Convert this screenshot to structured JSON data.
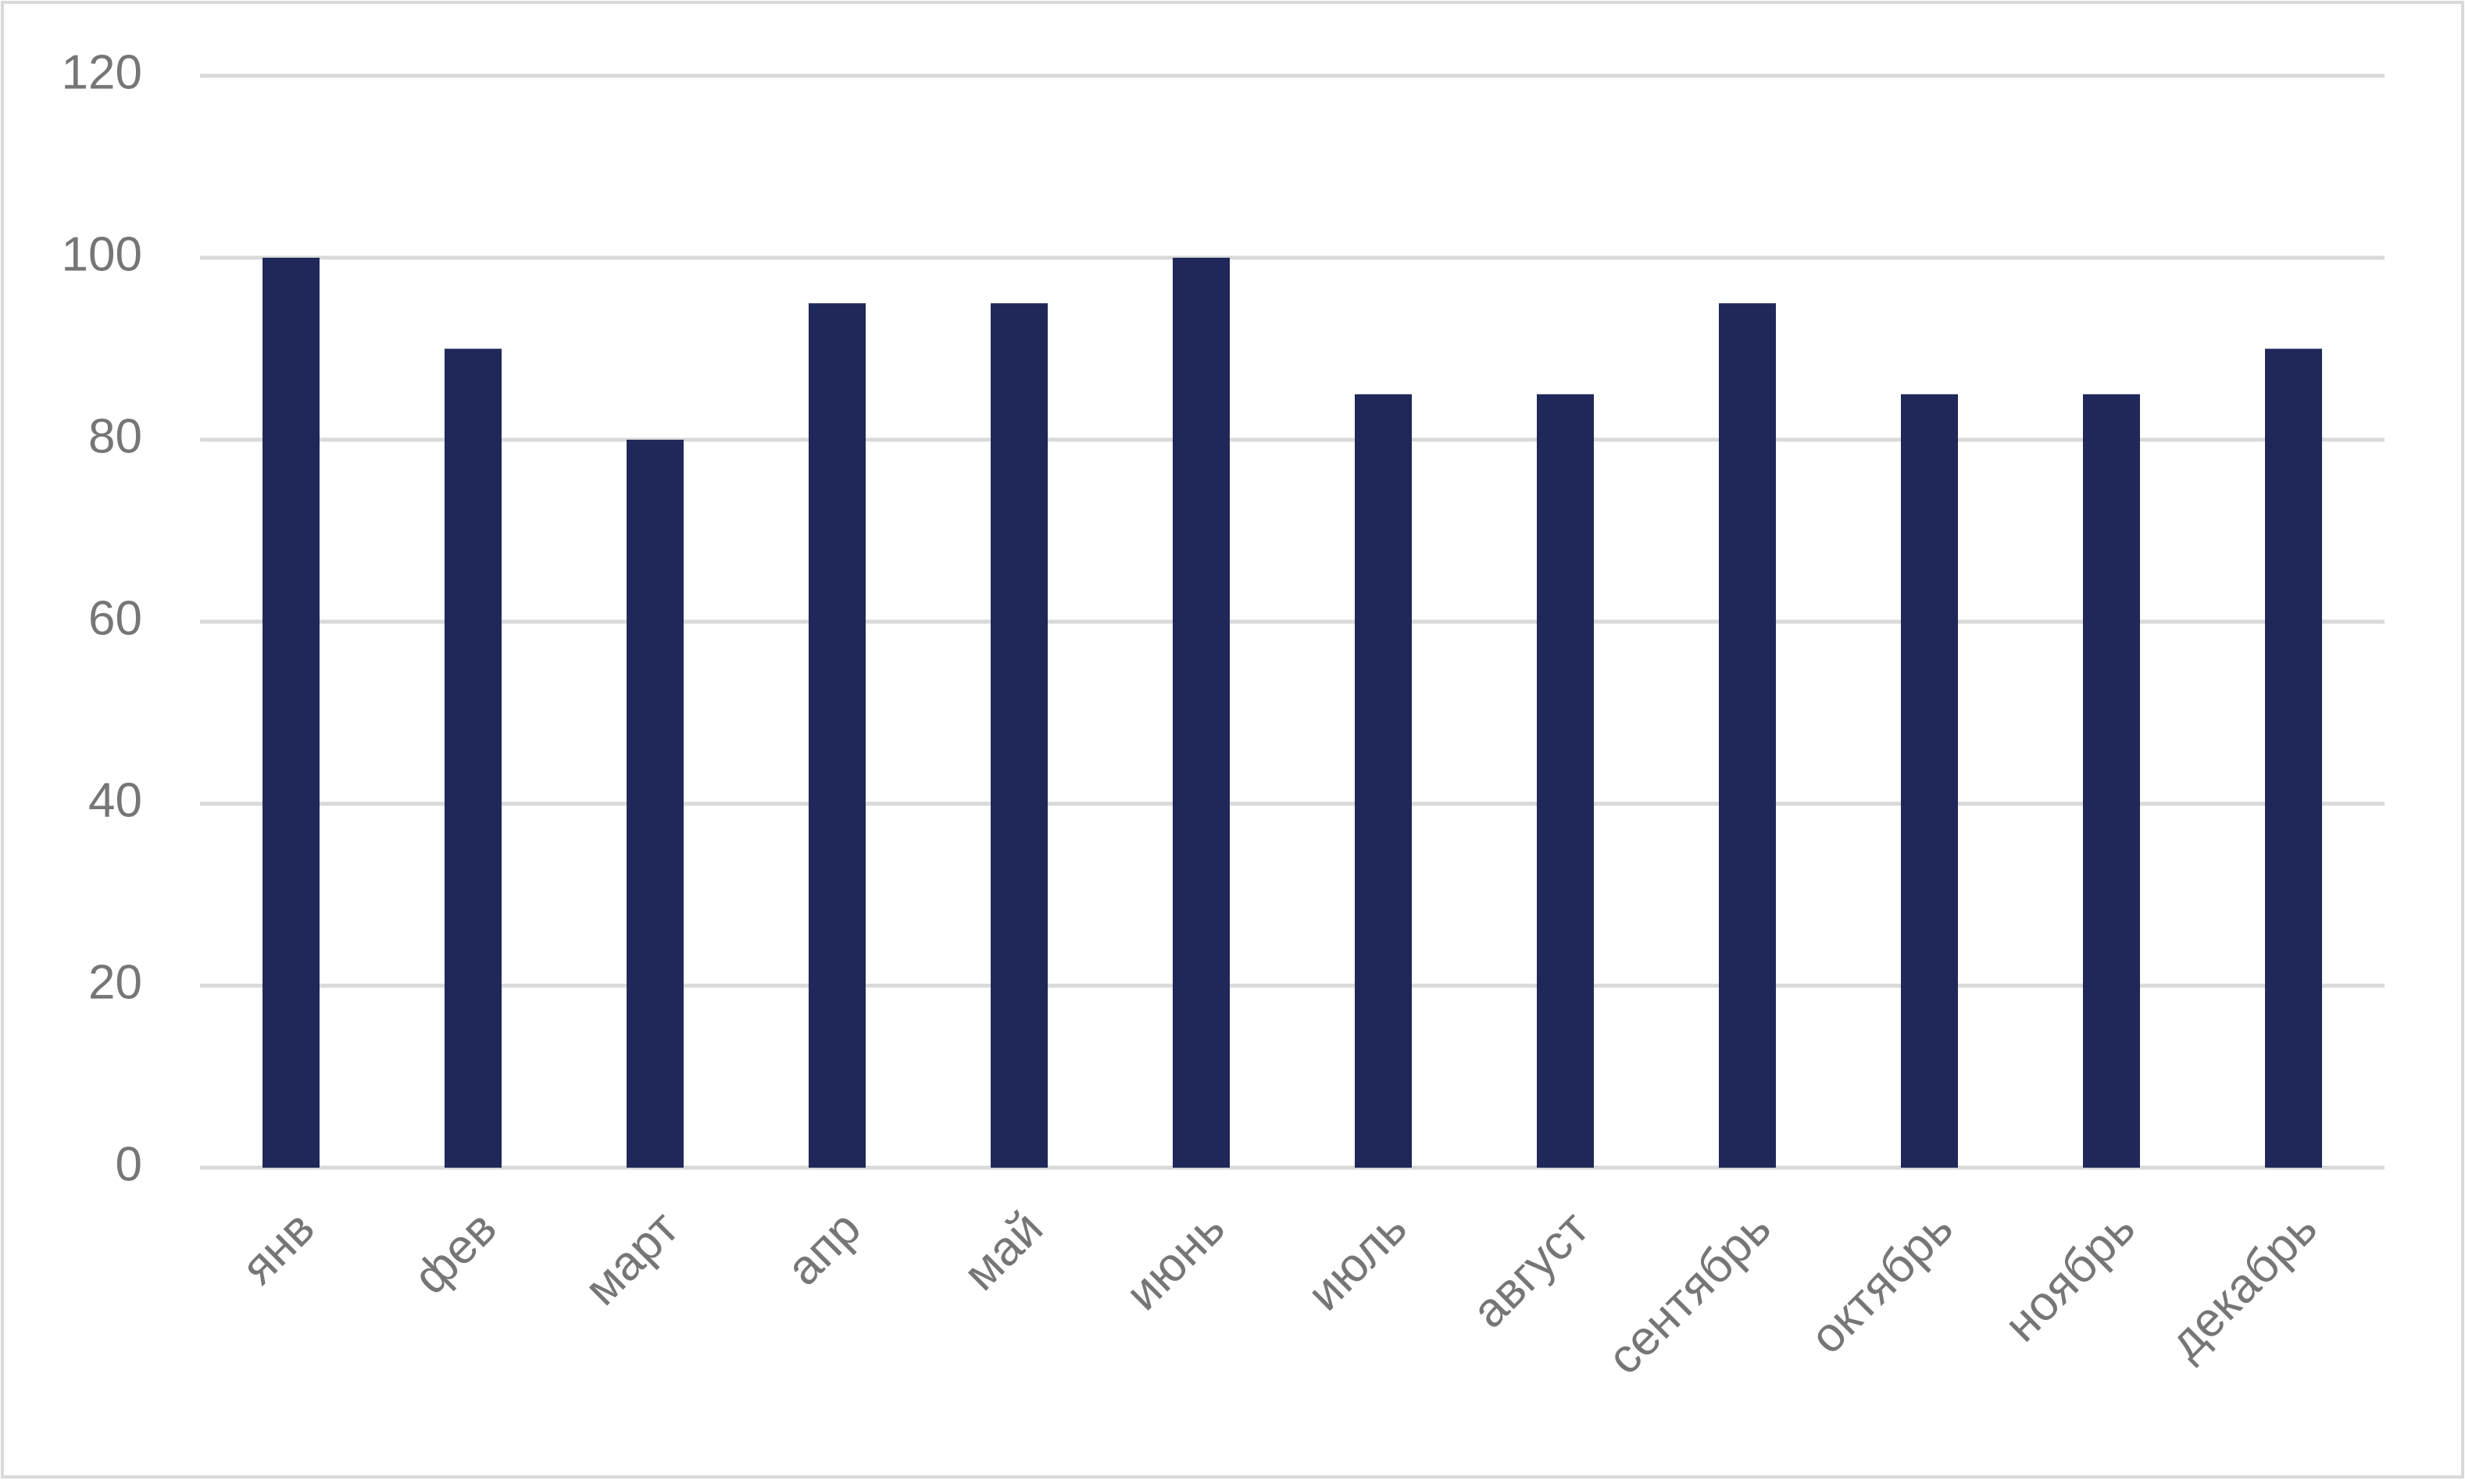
{
  "chart_data": {
    "type": "bar",
    "categories": [
      "янв",
      "фев",
      "март",
      "апр",
      "май",
      "июнь",
      "июль",
      "август",
      "сентябрь",
      "октябрь",
      "ноябрь",
      "декабрь"
    ],
    "values": [
      100,
      90,
      80,
      95,
      95,
      100,
      85,
      85,
      95,
      85,
      85,
      90
    ],
    "color": "#1f2859",
    "ylim": [
      0,
      120
    ],
    "yticks": [
      0,
      20,
      40,
      60,
      80,
      100,
      120
    ],
    "grid": true
  }
}
